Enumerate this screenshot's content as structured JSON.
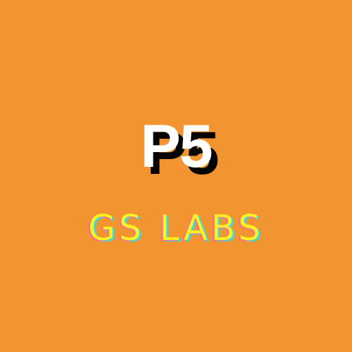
{
  "logo": {
    "title": "P5",
    "subtitle": "GS LABS"
  },
  "colors": {
    "background": "#f29430",
    "title_fill": "#ffffff",
    "title_shadow": "#050505",
    "subtitle_primary": "#fff01f",
    "subtitle_secondary_pink": "#ff5fa8",
    "subtitle_secondary_cyan": "#40d9d2"
  }
}
